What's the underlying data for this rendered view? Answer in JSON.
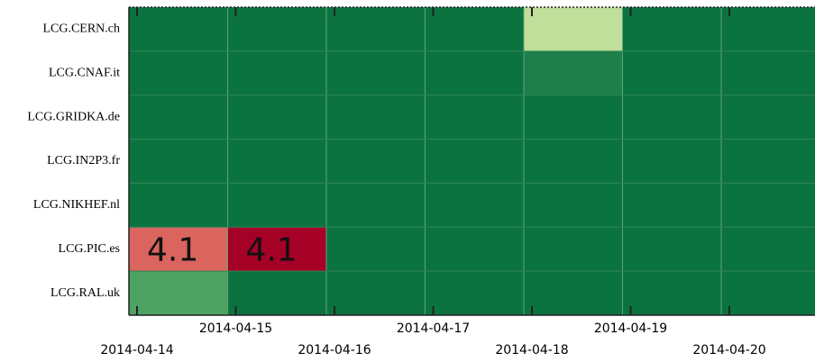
{
  "chart_data": {
    "type": "heatmap",
    "categories": [
      "2014-04-14",
      "2014-04-15",
      "2014-04-16",
      "2014-04-17",
      "2014-04-18",
      "2014-04-19",
      "2014-04-20"
    ],
    "rows": [
      "LCG.CERN.ch",
      "LCG.CNAF.it",
      "LCG.GRIDKA.de",
      "LCG.IN2P3.fr",
      "LCG.NIKHEF.nl",
      "LCG.PIC.es",
      "LCG.RAL.uk"
    ],
    "values": [
      [
        null,
        null,
        null,
        null,
        null,
        null,
        null
      ],
      [
        null,
        null,
        null,
        null,
        null,
        null,
        null
      ],
      [
        null,
        null,
        null,
        null,
        null,
        null,
        null
      ],
      [
        null,
        null,
        null,
        null,
        null,
        null,
        null
      ],
      [
        null,
        null,
        null,
        null,
        null,
        null,
        null
      ],
      [
        4.1,
        4.1,
        null,
        null,
        null,
        null,
        null
      ],
      [
        null,
        null,
        null,
        null,
        null,
        null,
        null
      ]
    ],
    "colors": [
      [
        "#0b7340",
        "#0b7340",
        "#0b7340",
        "#0b7340",
        "#bfdf9a",
        "#0b7340",
        "#0b7340"
      ],
      [
        "#0b7340",
        "#0b7340",
        "#0b7340",
        "#0b7340",
        "#1e7f4a",
        "#0b7340",
        "#0b7340"
      ],
      [
        "#0b7340",
        "#0b7340",
        "#0b7340",
        "#0b7340",
        "#0b7340",
        "#0b7340",
        "#0b7340"
      ],
      [
        "#0b7340",
        "#0b7340",
        "#0b7340",
        "#0b7340",
        "#0b7340",
        "#0b7340",
        "#0b7340"
      ],
      [
        "#0b7340",
        "#0b7340",
        "#0b7340",
        "#0b7340",
        "#0b7340",
        "#0b7340",
        "#0b7340"
      ],
      [
        "#d9655e",
        "#a50026",
        "#0b7340",
        "#0b7340",
        "#0b7340",
        "#0b7340",
        "#0b7340"
      ],
      [
        "#4ea263",
        "#0b7340",
        "#0b7340",
        "#0b7340",
        "#0b7340",
        "#0b7340",
        "#0b7340"
      ]
    ],
    "grid": true
  }
}
